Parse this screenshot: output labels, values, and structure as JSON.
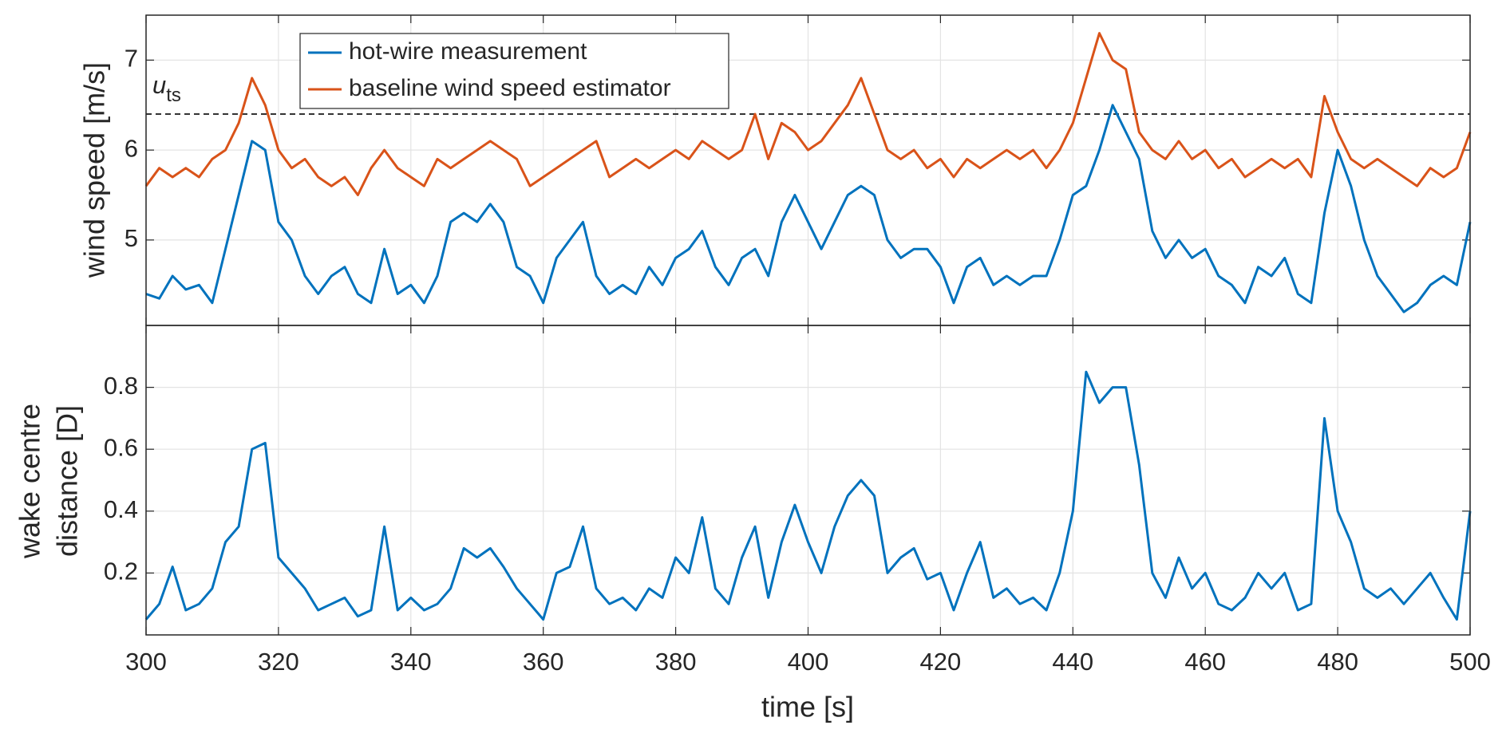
{
  "chart_data": [
    {
      "type": "line",
      "ylabel": "wind speed [m/s]",
      "ylim": [
        4.05,
        7.5
      ],
      "yticks": [
        5,
        6,
        7
      ],
      "grid": true,
      "legend": "upper left",
      "threshold": {
        "value": 6.4,
        "text": "u",
        "subscript": "ts"
      },
      "series": [
        {
          "name": "hot-wire measurement",
          "color": "#0072BD",
          "values": [
            4.4,
            4.35,
            4.6,
            4.45,
            4.5,
            4.3,
            4.9,
            5.5,
            6.1,
            6.0,
            5.2,
            5.0,
            4.6,
            4.4,
            4.6,
            4.7,
            4.4,
            4.3,
            4.9,
            4.4,
            4.5,
            4.3,
            4.6,
            5.2,
            5.3,
            5.2,
            5.4,
            5.2,
            4.7,
            4.6,
            4.3,
            4.8,
            5.0,
            5.2,
            4.6,
            4.4,
            4.5,
            4.4,
            4.7,
            4.5,
            4.8,
            4.9,
            5.1,
            4.7,
            4.5,
            4.8,
            4.9,
            4.6,
            5.2,
            5.5,
            5.2,
            4.9,
            5.2,
            5.5,
            5.6,
            5.5,
            5.0,
            4.8,
            4.9,
            4.9,
            4.7,
            4.3,
            4.7,
            4.8,
            4.5,
            4.6,
            4.5,
            4.6,
            4.6,
            5.0,
            5.5,
            5.6,
            6.0,
            6.5,
            6.2,
            5.9,
            5.1,
            4.8,
            5.0,
            4.8,
            4.9,
            4.6,
            4.5,
            4.3,
            4.7,
            4.6,
            4.8,
            4.4,
            4.3,
            5.3,
            6.0,
            5.6,
            5.0,
            4.6,
            4.4,
            4.2,
            4.3,
            4.5,
            4.6,
            4.5,
            5.2
          ]
        },
        {
          "name": "baseline wind speed estimator",
          "color": "#D95319",
          "values": [
            5.6,
            5.8,
            5.7,
            5.8,
            5.7,
            5.9,
            6.0,
            6.3,
            6.8,
            6.5,
            6.0,
            5.8,
            5.9,
            5.7,
            5.6,
            5.7,
            5.5,
            5.8,
            6.0,
            5.8,
            5.7,
            5.6,
            5.9,
            5.8,
            5.9,
            6.0,
            6.1,
            6.0,
            5.9,
            5.6,
            5.7,
            5.8,
            5.9,
            6.0,
            6.1,
            5.7,
            5.8,
            5.9,
            5.8,
            5.9,
            6.0,
            5.9,
            6.1,
            6.0,
            5.9,
            6.0,
            6.4,
            5.9,
            6.3,
            6.2,
            6.0,
            6.1,
            6.3,
            6.5,
            6.8,
            6.4,
            6.0,
            5.9,
            6.0,
            5.8,
            5.9,
            5.7,
            5.9,
            5.8,
            5.9,
            6.0,
            5.9,
            6.0,
            5.8,
            6.0,
            6.3,
            6.8,
            7.3,
            7.0,
            6.9,
            6.2,
            6.0,
            5.9,
            6.1,
            5.9,
            6.0,
            5.8,
            5.9,
            5.7,
            5.8,
            5.9,
            5.8,
            5.9,
            5.7,
            6.6,
            6.2,
            5.9,
            5.8,
            5.9,
            5.8,
            5.7,
            5.6,
            5.8,
            5.7,
            5.8,
            6.2
          ]
        }
      ]
    },
    {
      "type": "line",
      "xlabel": "time [s]",
      "ylabel": [
        "wake centre",
        "distance [D]"
      ],
      "xlim": [
        300,
        500
      ],
      "xticks": [
        300,
        320,
        340,
        360,
        380,
        400,
        420,
        440,
        460,
        480,
        500
      ],
      "ylim": [
        0,
        1
      ],
      "yticks": [
        0.2,
        0.4,
        0.6,
        0.8
      ],
      "grid": true,
      "x": [
        300,
        302,
        304,
        306,
        308,
        310,
        312,
        314,
        316,
        318,
        320,
        322,
        324,
        326,
        328,
        330,
        332,
        334,
        336,
        338,
        340,
        342,
        344,
        346,
        348,
        350,
        352,
        354,
        356,
        358,
        360,
        362,
        364,
        366,
        368,
        370,
        372,
        374,
        376,
        378,
        380,
        382,
        384,
        386,
        388,
        390,
        392,
        394,
        396,
        398,
        400,
        402,
        404,
        406,
        408,
        410,
        412,
        414,
        416,
        418,
        420,
        422,
        424,
        426,
        428,
        430,
        432,
        434,
        436,
        438,
        440,
        442,
        444,
        446,
        448,
        450,
        452,
        454,
        456,
        458,
        460,
        462,
        464,
        466,
        468,
        470,
        472,
        474,
        476,
        478,
        480,
        482,
        484,
        486,
        488,
        490,
        492,
        494,
        496,
        498,
        500
      ],
      "series": [
        {
          "color": "#0072BD",
          "values": [
            0.05,
            0.1,
            0.22,
            0.08,
            0.1,
            0.15,
            0.3,
            0.35,
            0.6,
            0.62,
            0.25,
            0.2,
            0.15,
            0.08,
            0.1,
            0.12,
            0.06,
            0.08,
            0.35,
            0.08,
            0.12,
            0.08,
            0.1,
            0.15,
            0.28,
            0.25,
            0.28,
            0.22,
            0.15,
            0.1,
            0.05,
            0.2,
            0.22,
            0.35,
            0.15,
            0.1,
            0.12,
            0.08,
            0.15,
            0.12,
            0.25,
            0.2,
            0.38,
            0.15,
            0.1,
            0.25,
            0.35,
            0.12,
            0.3,
            0.42,
            0.3,
            0.2,
            0.35,
            0.45,
            0.5,
            0.45,
            0.2,
            0.25,
            0.28,
            0.18,
            0.2,
            0.08,
            0.2,
            0.3,
            0.12,
            0.15,
            0.1,
            0.12,
            0.08,
            0.2,
            0.4,
            0.85,
            0.75,
            0.8,
            0.8,
            0.55,
            0.2,
            0.12,
            0.25,
            0.15,
            0.2,
            0.1,
            0.08,
            0.12,
            0.2,
            0.15,
            0.2,
            0.08,
            0.1,
            0.7,
            0.4,
            0.3,
            0.15,
            0.12,
            0.15,
            0.1,
            0.15,
            0.2,
            0.12,
            0.05,
            0.4
          ]
        }
      ]
    }
  ]
}
